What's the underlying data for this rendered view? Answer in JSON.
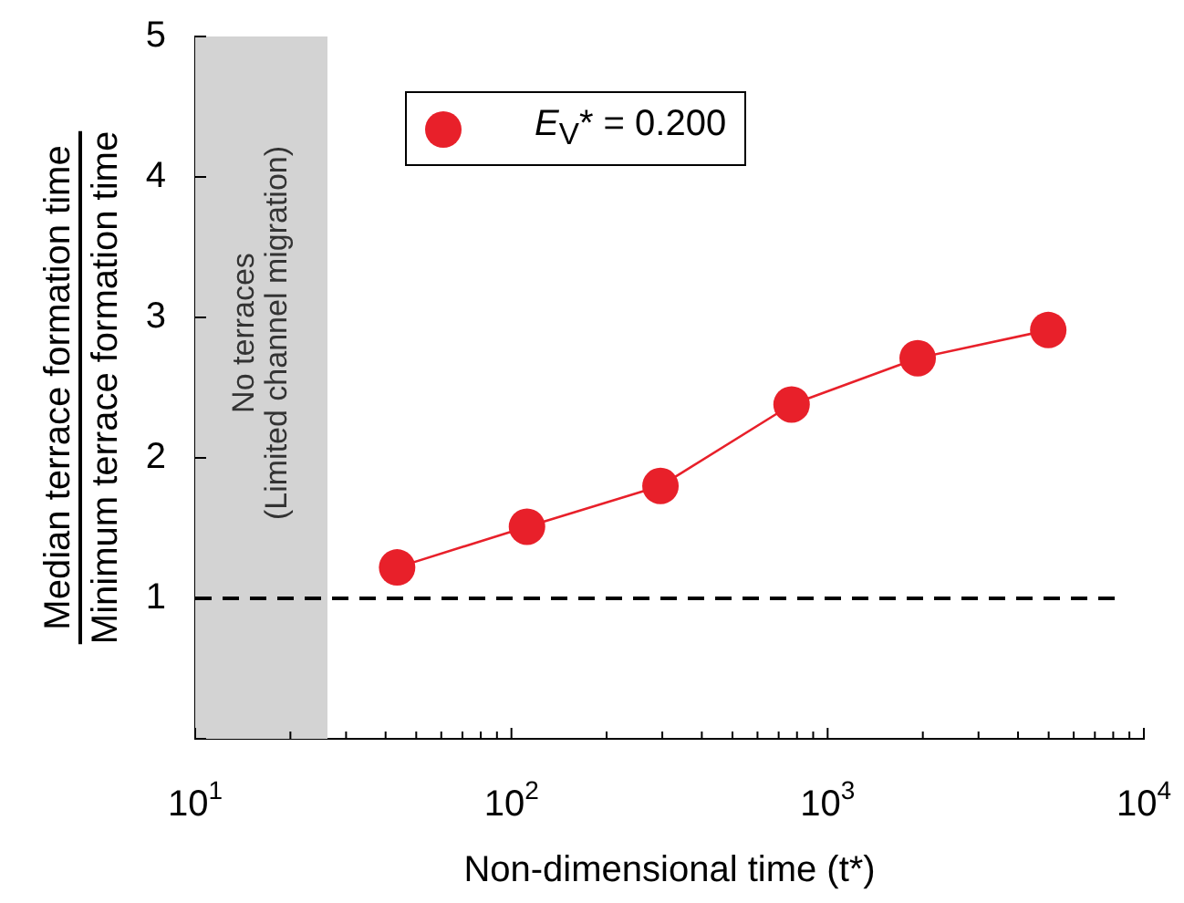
{
  "chart_data": {
    "type": "line",
    "xlabel": "Non-dimensional time (t*)",
    "ylabel": "Median terrace formation time\nMinimum terrace formation time",
    "x": [
      43.5,
      112,
      296,
      769,
      1926,
      4985
    ],
    "series": [
      {
        "name": "E$_{V}$* = 0.200",
        "color": "#e8202a",
        "values": [
          1.22,
          1.51,
          1.8,
          2.38,
          2.71,
          2.91
        ]
      }
    ],
    "log": "x",
    "xlim": [
      10,
      10000
    ],
    "xticks": [
      {
        "value": 10,
        "label": "10$^{1}$"
      },
      {
        "value": 20,
        "label": null
      },
      {
        "value": 30,
        "label": null
      },
      {
        "value": 40,
        "label": null
      },
      {
        "value": 50,
        "label": null
      },
      {
        "value": 60,
        "label": null
      },
      {
        "value": 70,
        "label": null
      },
      {
        "value": 80,
        "label": null
      },
      {
        "value": 90,
        "label": null
      },
      {
        "value": 100,
        "label": "10$^{2}$"
      },
      {
        "value": 200,
        "label": null
      },
      {
        "value": 300,
        "label": null
      },
      {
        "value": 400,
        "label": null
      },
      {
        "value": 500,
        "label": null
      },
      {
        "value": 600,
        "label": null
      },
      {
        "value": 700,
        "label": null
      },
      {
        "value": 800,
        "label": null
      },
      {
        "value": 900,
        "label": null
      },
      {
        "value": 1000,
        "label": "10$^{3}$"
      },
      {
        "value": 2000,
        "label": null
      },
      {
        "value": 3000,
        "label": null
      },
      {
        "value": 4000,
        "label": null
      },
      {
        "value": 5000,
        "label": null
      },
      {
        "value": 6000,
        "label": null
      },
      {
        "value": 7000,
        "label": null
      },
      {
        "value": 8000,
        "label": null
      },
      {
        "value": 9000,
        "label": null
      },
      {
        "value": 10000,
        "label": "10$^{4}$"
      }
    ],
    "ylim": [
      0,
      5
    ],
    "yticks": [
      {
        "value": 0,
        "label": null
      },
      1,
      2,
      3,
      4,
      5
    ],
    "bands": [
      {
        "axis": "x",
        "from": 10,
        "to": 26.2,
        "label": "No terraces\n(Limited channel migration)",
        "color": "#d3d3d3"
      }
    ],
    "ref_lines": [
      {
        "axis": "y",
        "value": 1,
        "color": "#000000",
        "line_style": "dashed"
      }
    ],
    "legend": "top left",
    "marker": "circle",
    "line_style": "solid"
  }
}
